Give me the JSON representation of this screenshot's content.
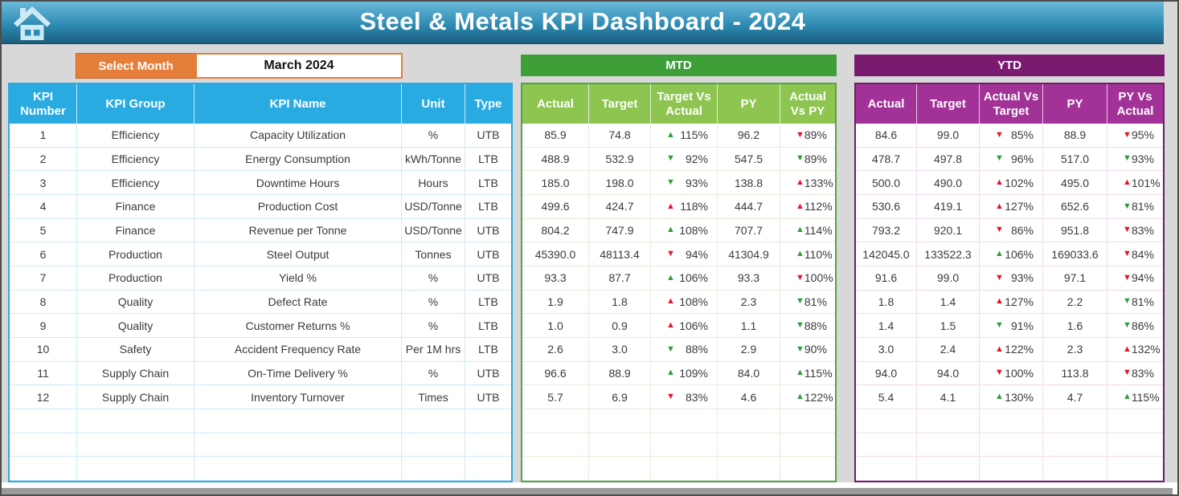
{
  "app": {
    "title": "Steel & Metals KPI Dashboard - 2024"
  },
  "controls": {
    "select_month_label": "Select Month",
    "selected_month": "March 2024"
  },
  "sections": {
    "mtd": "MTD",
    "ytd": "YTD"
  },
  "colors": {
    "table_blue": "#29ABE2",
    "mtd_green_dark": "#3E9E38",
    "mtd_green_light": "#8DC550",
    "ytd_purple_dark": "#7A1B70",
    "ytd_purple_light": "#A23297",
    "accent_orange": "#E57E39",
    "up_good_green": "#2E9E36",
    "down_bad_red": "#E8112D"
  },
  "table": {
    "left_headers": [
      "KPI Number",
      "KPI Group",
      "KPI Name",
      "Unit",
      "Type"
    ],
    "mtd_headers": [
      "Actual",
      "Target",
      "Target Vs Actual",
      "PY",
      "Actual Vs PY"
    ],
    "ytd_headers": [
      "Actual",
      "Target",
      "Actual Vs Target",
      "PY",
      "PY Vs Actual"
    ],
    "empty_row_count": 3,
    "rows": [
      {
        "number": "1",
        "group": "Efficiency",
        "name": "Capacity Utilization",
        "unit": "%",
        "type": "UTB",
        "mtd": {
          "actual": "85.9",
          "target": "74.8",
          "target_vs_actual": {
            "arrow": "up",
            "color": "green",
            "value": "115%"
          },
          "py": "96.2",
          "actual_vs_py": {
            "arrow": "down",
            "color": "red",
            "value": "89%"
          }
        },
        "ytd": {
          "actual": "84.6",
          "target": "99.0",
          "actual_vs_target": {
            "arrow": "down",
            "color": "red",
            "value": "85%"
          },
          "py": "88.9",
          "py_vs_actual": {
            "arrow": "down",
            "color": "red",
            "value": "95%"
          }
        }
      },
      {
        "number": "2",
        "group": "Efficiency",
        "name": "Energy Consumption",
        "unit": "kWh/Tonne",
        "type": "LTB",
        "mtd": {
          "actual": "488.9",
          "target": "532.9",
          "target_vs_actual": {
            "arrow": "down",
            "color": "green",
            "value": "92%"
          },
          "py": "547.5",
          "actual_vs_py": {
            "arrow": "down",
            "color": "green",
            "value": "89%"
          }
        },
        "ytd": {
          "actual": "478.7",
          "target": "497.8",
          "actual_vs_target": {
            "arrow": "down",
            "color": "green",
            "value": "96%"
          },
          "py": "517.0",
          "py_vs_actual": {
            "arrow": "down",
            "color": "green",
            "value": "93%"
          }
        }
      },
      {
        "number": "3",
        "group": "Efficiency",
        "name": "Downtime Hours",
        "unit": "Hours",
        "type": "LTB",
        "mtd": {
          "actual": "185.0",
          "target": "198.0",
          "target_vs_actual": {
            "arrow": "down",
            "color": "green",
            "value": "93%"
          },
          "py": "138.8",
          "actual_vs_py": {
            "arrow": "up",
            "color": "red",
            "value": "133%"
          }
        },
        "ytd": {
          "actual": "500.0",
          "target": "490.0",
          "actual_vs_target": {
            "arrow": "up",
            "color": "red",
            "value": "102%"
          },
          "py": "495.0",
          "py_vs_actual": {
            "arrow": "up",
            "color": "red",
            "value": "101%"
          }
        }
      },
      {
        "number": "4",
        "group": "Finance",
        "name": "Production Cost",
        "unit": "USD/Tonne",
        "type": "LTB",
        "mtd": {
          "actual": "499.6",
          "target": "424.7",
          "target_vs_actual": {
            "arrow": "up",
            "color": "red",
            "value": "118%"
          },
          "py": "444.7",
          "actual_vs_py": {
            "arrow": "up",
            "color": "red",
            "value": "112%"
          }
        },
        "ytd": {
          "actual": "530.6",
          "target": "419.1",
          "actual_vs_target": {
            "arrow": "up",
            "color": "red",
            "value": "127%"
          },
          "py": "652.6",
          "py_vs_actual": {
            "arrow": "down",
            "color": "green",
            "value": "81%"
          }
        }
      },
      {
        "number": "5",
        "group": "Finance",
        "name": "Revenue per Tonne",
        "unit": "USD/Tonne",
        "type": "UTB",
        "mtd": {
          "actual": "804.2",
          "target": "747.9",
          "target_vs_actual": {
            "arrow": "up",
            "color": "green",
            "value": "108%"
          },
          "py": "707.7",
          "actual_vs_py": {
            "arrow": "up",
            "color": "green",
            "value": "114%"
          }
        },
        "ytd": {
          "actual": "793.2",
          "target": "920.1",
          "actual_vs_target": {
            "arrow": "down",
            "color": "red",
            "value": "86%"
          },
          "py": "951.8",
          "py_vs_actual": {
            "arrow": "down",
            "color": "red",
            "value": "83%"
          }
        }
      },
      {
        "number": "6",
        "group": "Production",
        "name": "Steel Output",
        "unit": "Tonnes",
        "type": "UTB",
        "mtd": {
          "actual": "45390.0",
          "target": "48113.4",
          "target_vs_actual": {
            "arrow": "down",
            "color": "red",
            "value": "94%"
          },
          "py": "41304.9",
          "actual_vs_py": {
            "arrow": "up",
            "color": "green",
            "value": "110%"
          }
        },
        "ytd": {
          "actual": "142045.0",
          "target": "133522.3",
          "actual_vs_target": {
            "arrow": "up",
            "color": "green",
            "value": "106%"
          },
          "py": "169033.6",
          "py_vs_actual": {
            "arrow": "down",
            "color": "red",
            "value": "84%"
          }
        }
      },
      {
        "number": "7",
        "group": "Production",
        "name": "Yield %",
        "unit": "%",
        "type": "UTB",
        "mtd": {
          "actual": "93.3",
          "target": "87.7",
          "target_vs_actual": {
            "arrow": "up",
            "color": "green",
            "value": "106%"
          },
          "py": "93.3",
          "actual_vs_py": {
            "arrow": "down",
            "color": "red",
            "value": "100%"
          }
        },
        "ytd": {
          "actual": "91.6",
          "target": "99.0",
          "actual_vs_target": {
            "arrow": "down",
            "color": "red",
            "value": "93%"
          },
          "py": "97.1",
          "py_vs_actual": {
            "arrow": "down",
            "color": "red",
            "value": "94%"
          }
        }
      },
      {
        "number": "8",
        "group": "Quality",
        "name": "Defect Rate",
        "unit": "%",
        "type": "LTB",
        "mtd": {
          "actual": "1.9",
          "target": "1.8",
          "target_vs_actual": {
            "arrow": "up",
            "color": "red",
            "value": "108%"
          },
          "py": "2.3",
          "actual_vs_py": {
            "arrow": "down",
            "color": "green",
            "value": "81%"
          }
        },
        "ytd": {
          "actual": "1.8",
          "target": "1.4",
          "actual_vs_target": {
            "arrow": "up",
            "color": "red",
            "value": "127%"
          },
          "py": "2.2",
          "py_vs_actual": {
            "arrow": "down",
            "color": "green",
            "value": "81%"
          }
        }
      },
      {
        "number": "9",
        "group": "Quality",
        "name": "Customer Returns %",
        "unit": "%",
        "type": "LTB",
        "mtd": {
          "actual": "1.0",
          "target": "0.9",
          "target_vs_actual": {
            "arrow": "up",
            "color": "red",
            "value": "106%"
          },
          "py": "1.1",
          "actual_vs_py": {
            "arrow": "down",
            "color": "green",
            "value": "88%"
          }
        },
        "ytd": {
          "actual": "1.4",
          "target": "1.5",
          "actual_vs_target": {
            "arrow": "down",
            "color": "green",
            "value": "91%"
          },
          "py": "1.6",
          "py_vs_actual": {
            "arrow": "down",
            "color": "green",
            "value": "86%"
          }
        }
      },
      {
        "number": "10",
        "group": "Safety",
        "name": "Accident Frequency Rate",
        "unit": "Per 1M hrs",
        "type": "LTB",
        "mtd": {
          "actual": "2.6",
          "target": "3.0",
          "target_vs_actual": {
            "arrow": "down",
            "color": "green",
            "value": "88%"
          },
          "py": "2.9",
          "actual_vs_py": {
            "arrow": "down",
            "color": "green",
            "value": "90%"
          }
        },
        "ytd": {
          "actual": "3.0",
          "target": "2.4",
          "actual_vs_target": {
            "arrow": "up",
            "color": "red",
            "value": "122%"
          },
          "py": "2.3",
          "py_vs_actual": {
            "arrow": "up",
            "color": "red",
            "value": "132%"
          }
        }
      },
      {
        "number": "11",
        "group": "Supply Chain",
        "name": "On-Time Delivery %",
        "unit": "%",
        "type": "UTB",
        "mtd": {
          "actual": "96.6",
          "target": "88.9",
          "target_vs_actual": {
            "arrow": "up",
            "color": "green",
            "value": "109%"
          },
          "py": "84.0",
          "actual_vs_py": {
            "arrow": "up",
            "color": "green",
            "value": "115%"
          }
        },
        "ytd": {
          "actual": "94.0",
          "target": "94.0",
          "actual_vs_target": {
            "arrow": "down",
            "color": "red",
            "value": "100%"
          },
          "py": "113.8",
          "py_vs_actual": {
            "arrow": "down",
            "color": "red",
            "value": "83%"
          }
        }
      },
      {
        "number": "12",
        "group": "Supply Chain",
        "name": "Inventory Turnover",
        "unit": "Times",
        "type": "UTB",
        "mtd": {
          "actual": "5.7",
          "target": "6.9",
          "target_vs_actual": {
            "arrow": "down",
            "color": "red",
            "value": "83%"
          },
          "py": "4.6",
          "actual_vs_py": {
            "arrow": "up",
            "color": "green",
            "value": "122%"
          }
        },
        "ytd": {
          "actual": "5.4",
          "target": "4.1",
          "actual_vs_target": {
            "arrow": "up",
            "color": "green",
            "value": "130%"
          },
          "py": "4.7",
          "py_vs_actual": {
            "arrow": "up",
            "color": "green",
            "value": "115%"
          }
        }
      }
    ]
  }
}
